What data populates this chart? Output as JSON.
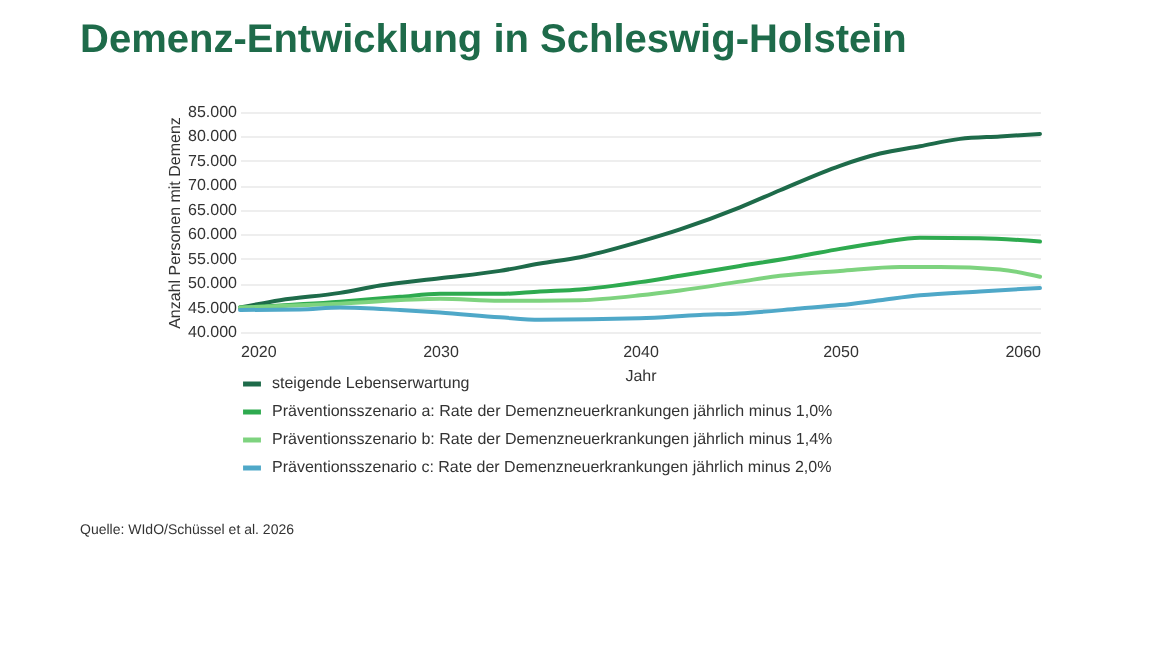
{
  "chart_data": {
    "type": "line",
    "title": "Demenz-Entwicklung in Schleswig-Holstein",
    "xlabel": "Jahr",
    "ylabel": "Anzahl Personen mit Demenz",
    "annotations": [
      "Quelle: WIdO/Schüssel et al. 2026"
    ],
    "xlim": [
      2020,
      2060
    ],
    "xticks": [
      2020,
      2030,
      2040,
      2050,
      2060
    ],
    "ylim": [
      40000,
      85000
    ],
    "yticks": [
      {
        "value": 40000,
        "label": "40.000"
      },
      {
        "value": 45000,
        "label": "45.000"
      },
      {
        "value": 50000,
        "label": "50.000"
      },
      {
        "value": 55000,
        "label": "55.000"
      },
      {
        "value": 60000,
        "label": "60.000"
      },
      {
        "value": 65000,
        "label": "65.000"
      },
      {
        "value": 70000,
        "label": "70.000"
      },
      {
        "value": 75000,
        "label": "75.000"
      },
      {
        "value": 80000,
        "label": "80.000"
      },
      {
        "value": 85000,
        "label": "85.000"
      }
    ],
    "grid": "y",
    "legend": "bottom",
    "line_style": "solid",
    "series": [
      {
        "name": "steigende Lebenserwartung",
        "color": "#1e6b4a",
        "x": [
          2020,
          2022,
          2025,
          2027,
          2030,
          2033,
          2035,
          2037,
          2040,
          2042,
          2045,
          2047,
          2050,
          2052,
          2054,
          2056,
          2058,
          2060
        ],
        "values": [
          45000,
          46500,
          48000,
          49500,
          51000,
          52500,
          54000,
          55300,
          58500,
          61000,
          65500,
          69000,
          74000,
          76500,
          78000,
          79500,
          80000,
          80500
        ]
      },
      {
        "name": "Präventionsszenario a: Rate der Demenzneuerkrankungen jährlich minus 1,0%",
        "color": "#2eaa4f",
        "x": [
          2020,
          2025,
          2028,
          2030,
          2033,
          2035,
          2037,
          2040,
          2042,
          2045,
          2048,
          2050,
          2052,
          2054,
          2057,
          2060
        ],
        "values": [
          45000,
          46200,
          47200,
          47800,
          47800,
          48300,
          48700,
          50200,
          51500,
          53500,
          55500,
          57000,
          58300,
          59300,
          59200,
          58500
        ]
      },
      {
        "name": "Präventionsszenario b: Rate der Demenzneuerkrankungen jährlich minus 1,4%",
        "color": "#7ed37f",
        "x": [
          2020,
          2025,
          2030,
          2033,
          2035,
          2037,
          2040,
          2042,
          2045,
          2047,
          2050,
          2053,
          2055,
          2058,
          2060
        ],
        "values": [
          45000,
          45800,
          46800,
          46400,
          46400,
          46500,
          47500,
          48500,
          50300,
          51500,
          52500,
          53300,
          53300,
          52800,
          51300
        ]
      },
      {
        "name": "Präventionsszenario c: Rate der Demenzneuerkrankungen jährlich minus 2,0%",
        "color": "#4fa8c8",
        "x": [
          2020,
          2023,
          2025,
          2028,
          2030,
          2033,
          2035,
          2040,
          2043,
          2045,
          2048,
          2050,
          2052,
          2054,
          2057,
          2060
        ],
        "values": [
          44500,
          44600,
          45000,
          44500,
          44000,
          43000,
          42500,
          42800,
          43500,
          43800,
          44800,
          45500,
          46500,
          47500,
          48300,
          49000
        ]
      }
    ]
  }
}
